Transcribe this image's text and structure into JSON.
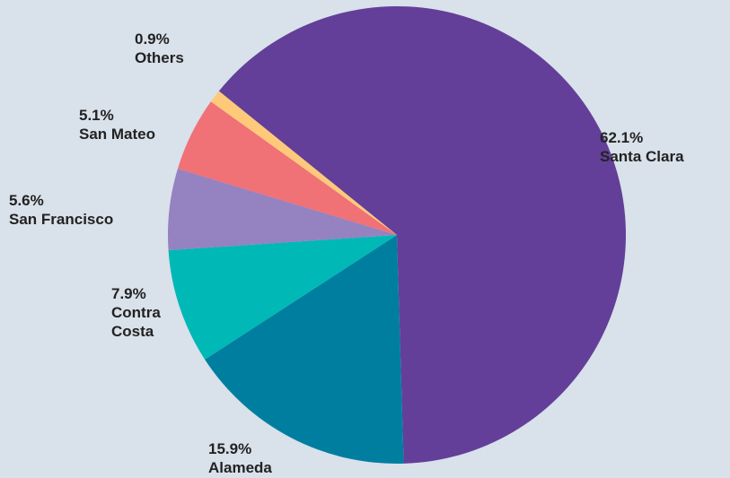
{
  "chart_data": {
    "type": "pie",
    "categories": [
      "Santa Clara",
      "Alameda",
      "Contra Costa",
      "San Francisco",
      "San Mateo",
      "Others"
    ],
    "values": [
      62.1,
      15.9,
      7.9,
      5.6,
      5.1,
      0.9
    ],
    "value_labels": [
      "62.1%",
      "15.9%",
      "7.9%",
      "5.6%",
      "5.1%",
      "0.9%"
    ],
    "colors": [
      "#633f99",
      "#007ea0",
      "#00b8b5",
      "#9582c1",
      "#f07176",
      "#ffc97a"
    ]
  }
}
